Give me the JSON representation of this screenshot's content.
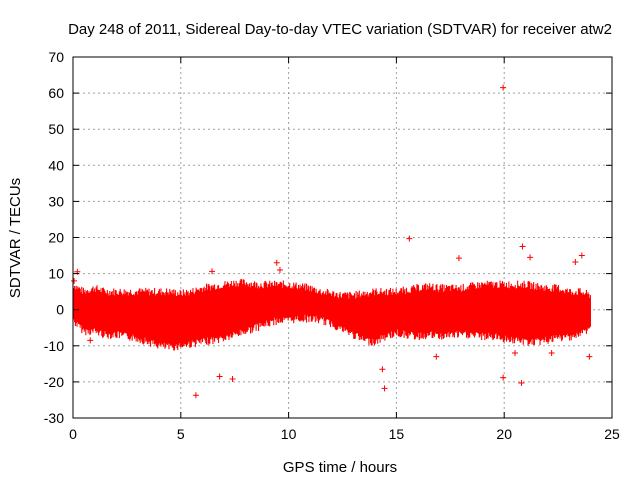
{
  "chart_data": {
    "type": "scatter",
    "title": "Day 248 of 2011, Sidereal Day-to-day VTEC variation (SDTVAR) for receiver atw2",
    "xlabel": "GPS time / hours",
    "ylabel": "SDTVAR / TECUs",
    "xlim": [
      0,
      25
    ],
    "ylim": [
      -30,
      70
    ],
    "xticks": [
      0,
      5,
      10,
      15,
      20,
      25
    ],
    "yticks": [
      -30,
      -20,
      -10,
      0,
      10,
      20,
      30,
      40,
      50,
      60,
      70
    ],
    "grid": true,
    "legend": "none",
    "series_color": "#ff0000",
    "band": {
      "x": [
        0,
        0.5,
        1,
        1.5,
        2,
        2.5,
        3,
        3.5,
        4,
        4.5,
        5,
        5.5,
        6,
        6.5,
        7,
        7.5,
        8,
        8.5,
        9,
        9.5,
        10,
        10.5,
        11,
        11.5,
        12,
        12.5,
        13,
        13.5,
        14,
        14.5,
        15,
        15.5,
        16,
        16.5,
        17,
        17.5,
        18,
        18.5,
        19,
        19.5,
        20,
        20.5,
        21,
        21.5,
        22,
        22.5,
        23,
        23.5,
        24
      ],
      "upper": [
        7,
        5,
        6,
        5,
        5,
        5,
        5,
        5,
        5,
        5,
        4.5,
        5,
        6,
        6.5,
        7,
        7.5,
        7.5,
        7,
        7,
        7,
        7,
        6.5,
        6,
        5,
        4.5,
        4,
        4,
        4.5,
        5,
        5,
        5,
        5.5,
        6,
        6.5,
        6,
        6,
        6,
        6.5,
        7,
        7,
        7,
        7,
        7,
        6.5,
        6,
        6,
        5,
        5,
        4
      ],
      "lower": [
        -3,
        -6,
        -6,
        -7,
        -7,
        -7.5,
        -8,
        -9,
        -10,
        -10.5,
        -10,
        -9.5,
        -9,
        -8.5,
        -8,
        -7,
        -6,
        -5,
        -4,
        -3,
        -3,
        -2.5,
        -2.5,
        -3,
        -4,
        -5.5,
        -7,
        -8.5,
        -9,
        -7.5,
        -6.5,
        -7,
        -7.5,
        -7,
        -7.5,
        -7,
        -7,
        -7,
        -7.5,
        -7.5,
        -8,
        -8.5,
        -9,
        -9,
        -8.5,
        -8,
        -7.5,
        -7,
        -5
      ]
    },
    "outliers": [
      {
        "x": 19.95,
        "y": 61.5
      },
      {
        "x": 15.6,
        "y": 19.7
      },
      {
        "x": 20.85,
        "y": 17.5
      },
      {
        "x": 17.9,
        "y": 14.3
      },
      {
        "x": 21.2,
        "y": 14.5
      },
      {
        "x": 23.3,
        "y": 13.2
      },
      {
        "x": 23.6,
        "y": 15
      },
      {
        "x": 9.45,
        "y": 13
      },
      {
        "x": 9.6,
        "y": 11
      },
      {
        "x": 6.45,
        "y": 10.6
      },
      {
        "x": 5.7,
        "y": -23.7
      },
      {
        "x": 7.4,
        "y": -19.2
      },
      {
        "x": 6.8,
        "y": -18.5
      },
      {
        "x": 14.45,
        "y": -21.8
      },
      {
        "x": 14.35,
        "y": -16.5
      },
      {
        "x": 19.95,
        "y": -18.8
      },
      {
        "x": 20.8,
        "y": -20.3
      },
      {
        "x": 16.85,
        "y": -13
      },
      {
        "x": 20.5,
        "y": -12
      },
      {
        "x": 22.2,
        "y": -12
      },
      {
        "x": 0.2,
        "y": 10.5
      },
      {
        "x": 0.05,
        "y": 8
      },
      {
        "x": 0.8,
        "y": -8.5
      },
      {
        "x": 23.95,
        "y": -13
      }
    ]
  }
}
